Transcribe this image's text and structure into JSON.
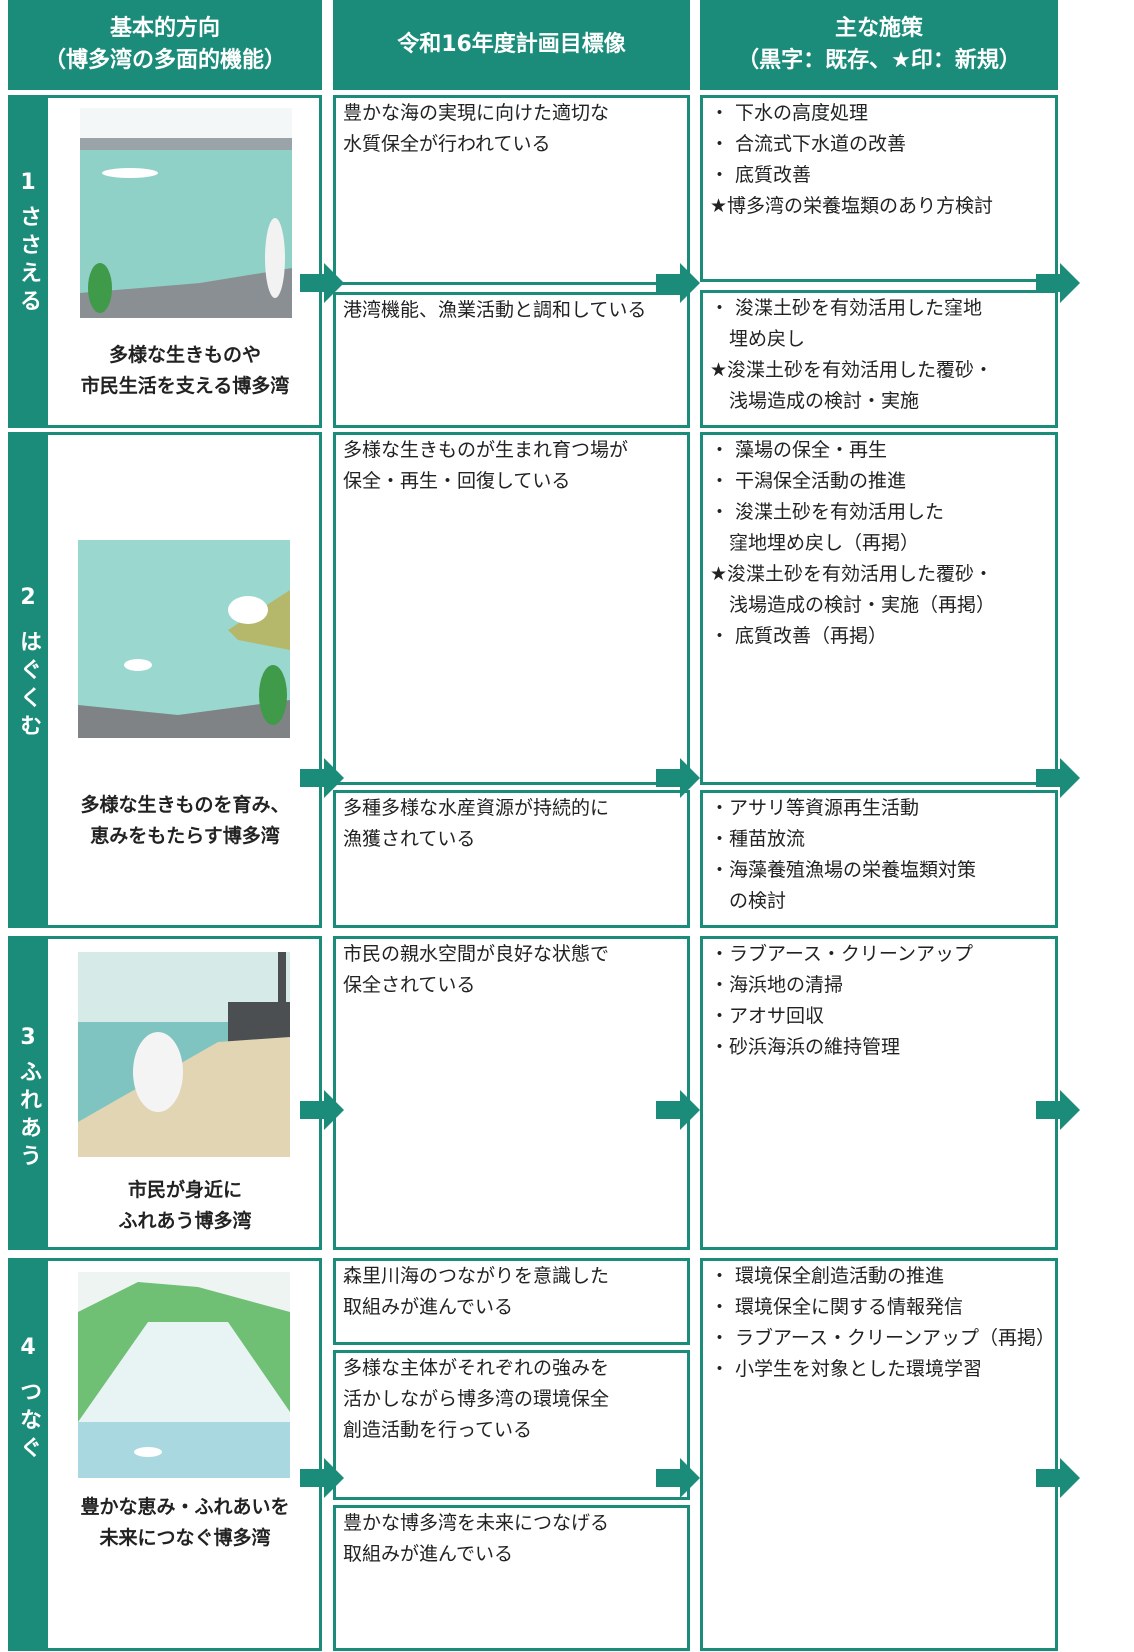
{
  "header": {
    "columns": [
      [
        "基本的方向",
        "（博多湾の多面的機能）"
      ],
      [
        "令和16年度計画目標像"
      ],
      [
        "主な施策",
        "（黒字：既存、★印：新規）"
      ]
    ]
  },
  "rows": [
    {
      "number": "1",
      "label": "ささえる",
      "caption": [
        "多様な生きものや",
        "市民生活を支える博多湾"
      ],
      "goals": [
        [
          "豊かな海の実現に向けた適切な",
          "水質保全が行われている"
        ],
        [
          "港湾機能、漁業活動と調和している"
        ]
      ],
      "measures": [
        [
          "・ 下水の高度処理",
          "・ 合流式下水道の改善",
          "・ 底質改善",
          "★博多湾の栄養塩類のあり方検討"
        ],
        [
          "・ 浚渫土砂を有効活用した窪地",
          "　埋め戻し",
          "★浚渫土砂を有効活用した覆砂・",
          "　浅場造成の検討・実施"
        ]
      ]
    },
    {
      "number": "2",
      "label": "はぐくむ",
      "caption": [
        "多様な生きものを育み、",
        "恵みをもたらす博多湾"
      ],
      "goals": [
        [
          "多様な生きものが生まれ育つ場が",
          "保全・再生・回復している"
        ],
        [
          "多種多様な水産資源が持続的に",
          "漁獲されている"
        ]
      ],
      "measures": [
        [
          "・ 藻場の保全・再生",
          "・ 干潟保全活動の推進",
          "・ 浚渫土砂を有効活用した",
          "　窪地埋め戻し（再掲）",
          "★浚渫土砂を有効活用した覆砂・",
          "　浅場造成の検討・実施（再掲）",
          "・ 底質改善（再掲）"
        ],
        [
          "・アサリ等資源再生活動",
          "・種苗放流",
          "・海藻養殖漁場の栄養塩類対策",
          "　の検討"
        ]
      ]
    },
    {
      "number": "3",
      "label": "ふれあう",
      "caption": [
        "市民が身近に",
        "ふれあう博多湾"
      ],
      "goals": [
        [
          "市民の親水空間が良好な状態で",
          "保全されている"
        ]
      ],
      "measures": [
        [
          "・ラブアース・クリーンアップ",
          "・海浜地の清掃",
          "・アオサ回収",
          "・砂浜海浜の維持管理"
        ]
      ]
    },
    {
      "number": "4",
      "label": "つなぐ",
      "caption": [
        "豊かな恵み・ふれあいを",
        "未来につなぐ博多湾"
      ],
      "goals": [
        [
          "森里川海のつながりを意識した",
          "取組みが進んでいる"
        ],
        [
          "多様な主体がそれぞれの強みを",
          "活かしながら博多湾の環境保全",
          "創造活動を行っている"
        ],
        [
          "豊かな博多湾を未来につなげる",
          "取組みが進んでいる"
        ]
      ],
      "measures": [
        [
          "・ 環境保全創造活動の推進",
          "・ 環境保全に関する情報発信",
          "・ ラブアース・クリーンアップ（再掲）",
          "・ 小学生を対象とした環境学習"
        ]
      ]
    }
  ]
}
